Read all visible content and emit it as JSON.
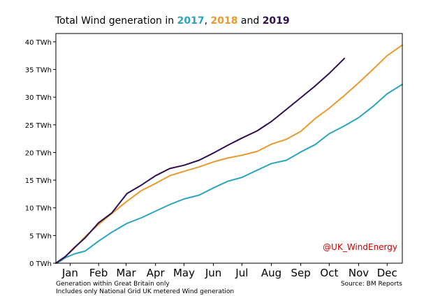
{
  "title": {
    "prefix": "Total Wind generation in",
    "year1": "2017",
    "sep": ",",
    "year2": "2018",
    "and": "and",
    "year3": "2019"
  },
  "footer": {
    "note1": "Generation within Great Britain only",
    "note2": "Includes only National Grid UK metered Wind generation",
    "source": "Source: BM Reports"
  },
  "watermark": "@UK_WindEnergy",
  "colors": {
    "2017": "#2aa4bf",
    "2018": "#e89a2e",
    "2019": "#2d0f4f",
    "watermark": "#cc0000"
  },
  "chart_data": {
    "type": "line",
    "title": "Total Wind generation in 2017, 2018 and 2019",
    "xlabel": "",
    "ylabel": "",
    "ylim": [
      0,
      41.5
    ],
    "xlim": [
      0,
      365
    ],
    "yticks": [
      0,
      5,
      10,
      15,
      20,
      25,
      30,
      35,
      40
    ],
    "ytick_labels": [
      "0 TWh",
      "5 TWh",
      "10 TWh",
      "15 TWh",
      "20 TWh",
      "25 TWh",
      "30 TWh",
      "35 TWh",
      "40 TWh"
    ],
    "months": [
      "Jan",
      "Feb",
      "Mar",
      "Apr",
      "May",
      "Jun",
      "Jul",
      "Aug",
      "Sep",
      "Oct",
      "Nov",
      "Dec"
    ],
    "month_days": [
      15,
      45,
      74,
      105,
      135,
      166,
      196,
      227,
      258,
      288,
      319,
      349
    ],
    "grid": false,
    "series": [
      {
        "name": "2017",
        "x": [
          0,
          5,
          10,
          20,
          31,
          45,
          59,
          75,
          90,
          105,
          120,
          135,
          151,
          166,
          181,
          196,
          212,
          227,
          243,
          258,
          273,
          288,
          304,
          319,
          334,
          349,
          365
        ],
        "y": [
          0,
          0.4,
          1,
          1.7,
          2.2,
          4,
          5.6,
          7.2,
          8.2,
          9.4,
          10.6,
          11.6,
          12.3,
          13.6,
          14.8,
          15.5,
          16.8,
          18,
          18.6,
          20.1,
          21.4,
          23.4,
          24.8,
          26.3,
          28.3,
          30.6,
          32.3
        ]
      },
      {
        "name": "2018",
        "x": [
          0,
          10,
          20,
          31,
          45,
          59,
          75,
          90,
          105,
          120,
          135,
          151,
          166,
          181,
          196,
          212,
          227,
          243,
          258,
          273,
          288,
          304,
          319,
          334,
          349,
          365
        ],
        "y": [
          0,
          1.2,
          2.8,
          4.8,
          7,
          9,
          11.2,
          13.1,
          14.4,
          15.8,
          16.6,
          17.4,
          18.3,
          19,
          19.5,
          20.2,
          21.5,
          22.4,
          23.8,
          26.1,
          28,
          30.3,
          32.6,
          35,
          37.5,
          39.4
        ]
      },
      {
        "name": "2019",
        "x": [
          0,
          10,
          20,
          31,
          45,
          59,
          75,
          90,
          105,
          120,
          135,
          151,
          166,
          181,
          196,
          212,
          227,
          243,
          258,
          273,
          288,
          304
        ],
        "y": [
          0,
          1.2,
          2.9,
          4.6,
          7.3,
          9.1,
          12.6,
          14.1,
          15.8,
          17.1,
          17.7,
          18.6,
          19.9,
          21.3,
          22.6,
          23.9,
          25.6,
          27.8,
          29.9,
          32,
          34.3,
          37
        ]
      }
    ]
  }
}
